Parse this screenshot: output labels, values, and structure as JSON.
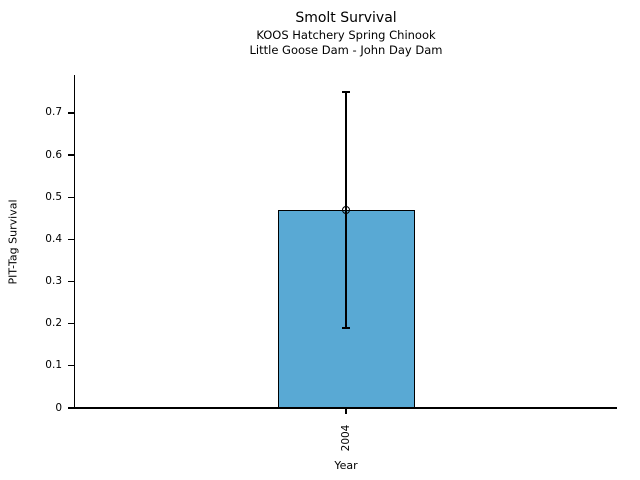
{
  "chart_data": {
    "type": "bar",
    "title": "Smolt Survival",
    "subtitle_line1": "KOOS Hatchery Spring Chinook",
    "subtitle_line2": "Little Goose Dam - John Day Dam",
    "xlabel": "Year",
    "ylabel": "PIT-Tag Survival",
    "categories": [
      "2004"
    ],
    "values": [
      0.47
    ],
    "error_low": [
      0.19
    ],
    "error_high": [
      0.75
    ],
    "ytick_values": [
      0,
      0.1,
      0.2,
      0.3,
      0.4,
      0.5,
      0.6,
      0.7
    ],
    "ytick_labels": [
      "0",
      "0.1",
      "0.2",
      "0.3",
      "0.4",
      "0.5",
      "0.6",
      "0.7"
    ],
    "ylim": [
      0,
      0.79
    ],
    "grid": false,
    "legend": "none",
    "marker": "open-circle",
    "bar_color": "#59A9D4",
    "edge_color": "#000000",
    "axis_color": "#000000",
    "text_color": "#000000"
  }
}
